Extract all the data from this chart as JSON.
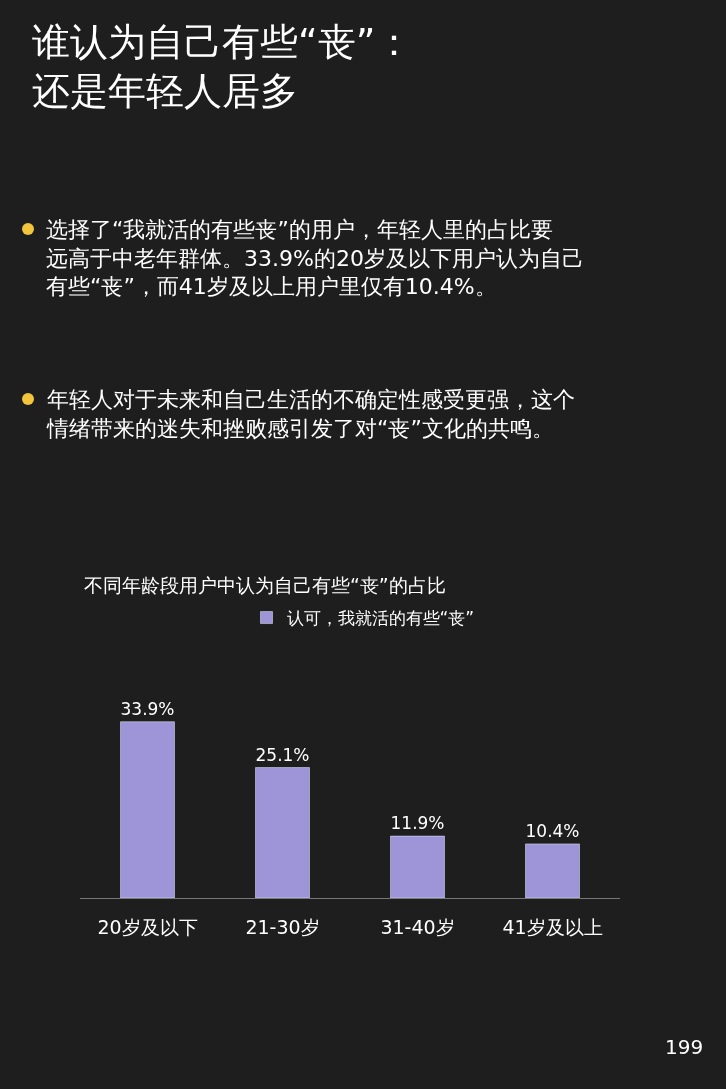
{
  "chart_data": {
    "type": "bar",
    "title": "谁认为自己有些“丧”：还是年轻人居多",
    "subtitle": "不同年龄段用户中认为自己有些“丧”的占比",
    "annotations": [
      "选择了“我就活的有些丧”的用户，年轻人里的占比要远高于中老年群体。33.9%的20岁及以下用户认为自己有些“丧”，而41岁及以上用户里仅有10.4%。",
      "年轻人对于未来和自己生活的不确定性感受更强，这个情绪带来的迷失和挫败感引发了对“丧”文化的共鸣。",
      "199"
    ],
    "categories": [
      "20岁及以下",
      "21-30岁",
      "31-40岁",
      "41岁及以上"
    ],
    "series": [
      {
        "name": "认可，我就活的有些“丧”",
        "color": "#9d95d8",
        "values": [
          33.9,
          25.1,
          11.9,
          10.4
        ],
        "value_labels": [
          "33.9%",
          "25.1%",
          "11.9%",
          "10.4%"
        ]
      }
    ],
    "legend": "top",
    "grid": false,
    "tick_labels": "x"
  }
}
